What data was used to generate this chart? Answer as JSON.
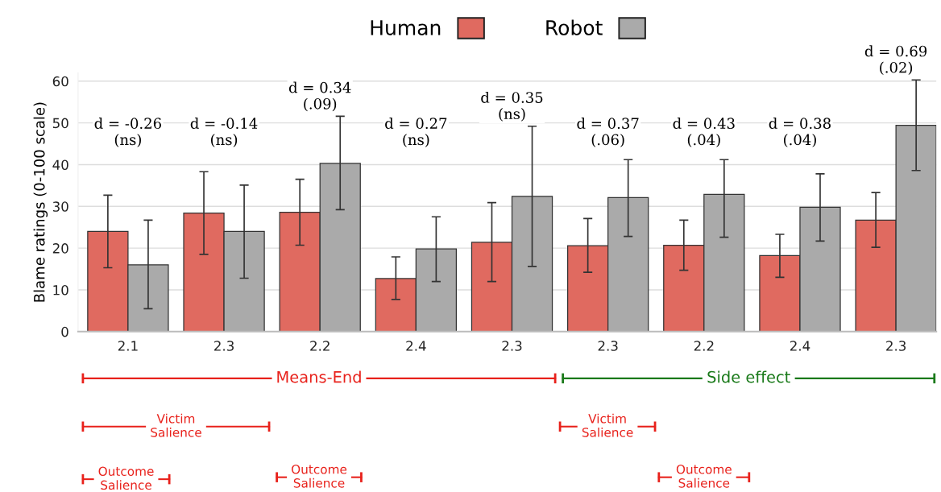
{
  "chart_data": {
    "type": "bar",
    "ylabel": "Blame ratings (0-100 scale)",
    "categories": [
      "2.1",
      "2.3",
      "2.2",
      "2.4",
      "2.3",
      "2.3",
      "2.2",
      "2.4",
      "2.3"
    ],
    "series": [
      {
        "name": "Human",
        "color": "#e06a60",
        "values": [
          24,
          28.4,
          28.6,
          12.7,
          21.4,
          20.6,
          20.7,
          18.2,
          26.7
        ],
        "errors": [
          [
            15.3,
            32.7
          ],
          [
            18.5,
            38.3
          ],
          [
            20.7,
            36.5
          ],
          [
            7.7,
            17.9
          ],
          [
            12,
            30.9
          ],
          [
            14.2,
            27.1
          ],
          [
            14.7,
            26.7
          ],
          [
            13,
            23.3
          ],
          [
            20.2,
            33.3
          ]
        ]
      },
      {
        "name": "Robot",
        "color": "#aaaaaa",
        "values": [
          16,
          24,
          40.3,
          19.8,
          32.4,
          32.1,
          32.9,
          29.8,
          49.4
        ],
        "errors": [
          [
            5.5,
            26.7
          ],
          [
            12.8,
            35.1
          ],
          [
            29.2,
            51.6
          ],
          [
            12,
            27.5
          ],
          [
            15.6,
            49.2
          ],
          [
            22.8,
            41.2
          ],
          [
            22.6,
            41.2
          ],
          [
            21.7,
            37.8
          ],
          [
            38.6,
            60.3
          ]
        ]
      }
    ],
    "ylim": [
      0,
      62
    ],
    "yticks": [
      0,
      10,
      20,
      30,
      40,
      50,
      60
    ],
    "grid": "y",
    "legend": "top",
    "annotations": [
      "d = -0.26\n(ns)",
      "d = -0.14\n(ns)",
      "d = 0.34\n(.09)",
      "d = 0.27\n(ns)",
      "d = 0.35\n(ns)",
      "d = 0.37\n(.06)",
      "d = 0.43\n(.04)",
      "d = 0.38\n(.04)",
      "d = 0.69\n(.02)",
      "Means-End",
      "Side effect",
      "Victim\nSalience",
      "Victim\nSalience",
      "Outcome\nSalience",
      "Outcome\nSalience",
      "Outcome\nSalience"
    ]
  }
}
